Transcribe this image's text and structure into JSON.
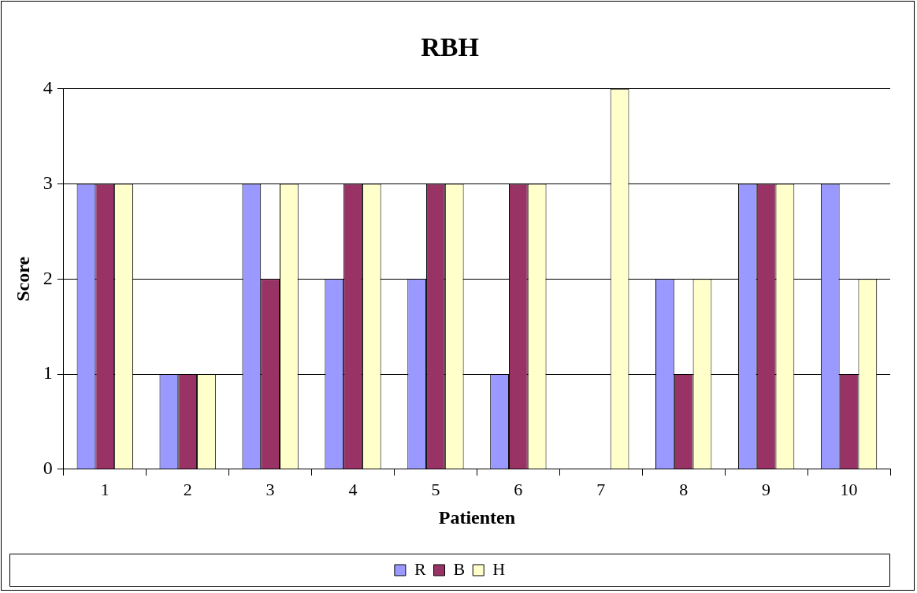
{
  "chart_data": {
    "type": "bar",
    "title": "RBH",
    "xlabel": "Patienten",
    "ylabel": "Score",
    "categories": [
      "1",
      "2",
      "3",
      "4",
      "5",
      "6",
      "7",
      "8",
      "9",
      "10"
    ],
    "series": [
      {
        "name": "R",
        "color": "#9999ff",
        "values": [
          3,
          1,
          3,
          2,
          2,
          1,
          0,
          2,
          3,
          3
        ]
      },
      {
        "name": "B",
        "color": "#993366",
        "values": [
          3,
          1,
          2,
          3,
          3,
          3,
          0,
          1,
          3,
          1
        ]
      },
      {
        "name": "H",
        "color": "#ffffcc",
        "values": [
          3,
          1,
          3,
          3,
          3,
          3,
          4,
          2,
          3,
          2
        ]
      }
    ],
    "ylim": [
      0,
      4
    ],
    "yticks": [
      0,
      1,
      2,
      3,
      4
    ],
    "grid": "y",
    "legend": "bottom"
  }
}
